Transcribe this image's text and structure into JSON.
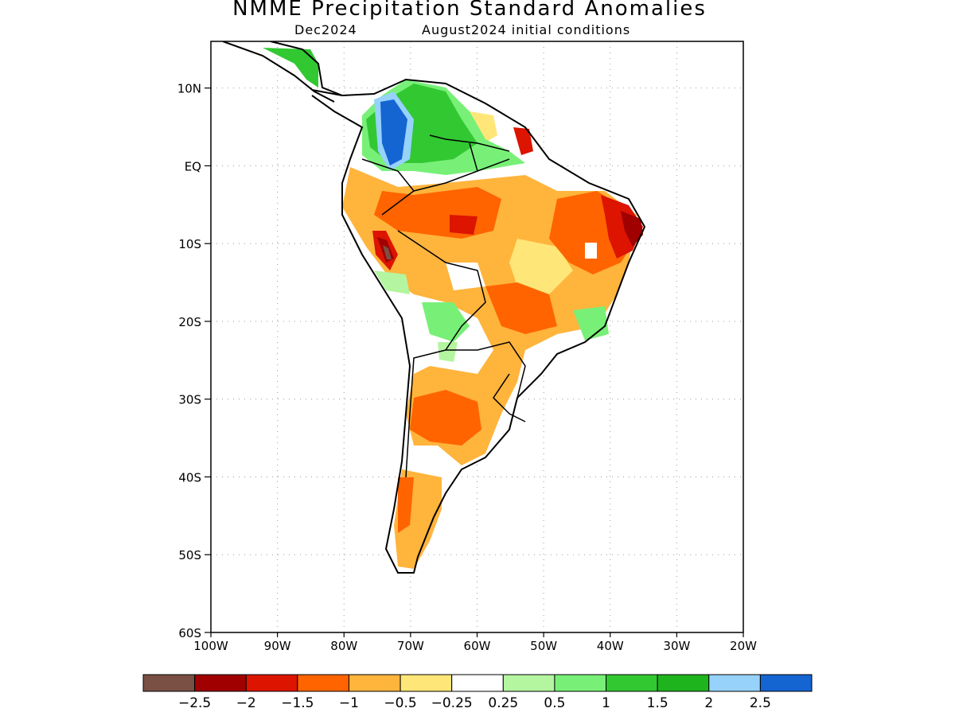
{
  "title": "NMME Precipitation Standard Anomalies",
  "subtitle_left": "Dec2024",
  "subtitle_right": "August2024 initial conditions",
  "lat_ticks": [
    {
      "value": 10,
      "label": "10N"
    },
    {
      "value": 0,
      "label": "EQ"
    },
    {
      "value": -10,
      "label": "10S"
    },
    {
      "value": -20,
      "label": "20S"
    },
    {
      "value": -30,
      "label": "30S"
    },
    {
      "value": -40,
      "label": "40S"
    },
    {
      "value": -50,
      "label": "50S"
    },
    {
      "value": -60,
      "label": "60S"
    }
  ],
  "lon_ticks": [
    {
      "value": -100,
      "label": "100W"
    },
    {
      "value": -90,
      "label": "90W"
    },
    {
      "value": -80,
      "label": "80W"
    },
    {
      "value": -70,
      "label": "70W"
    },
    {
      "value": -60,
      "label": "60W"
    },
    {
      "value": -50,
      "label": "50W"
    },
    {
      "value": -40,
      "label": "40W"
    },
    {
      "value": -30,
      "label": "30W"
    },
    {
      "value": -20,
      "label": "20W"
    }
  ],
  "extent": {
    "lon_min": -100,
    "lon_max": -20,
    "lat_min": -60,
    "lat_max": 16
  },
  "legend": {
    "colors": [
      "#7a5044",
      "#a00000",
      "#dc1400",
      "#ff6400",
      "#ffb43c",
      "#ffe678",
      "#ffffff",
      "#b4f5a0",
      "#78f078",
      "#32c832",
      "#1eb41e",
      "#96d2fa",
      "#1464d2"
    ],
    "labels": [
      "−2.5",
      "−2",
      "−1.5",
      "−1",
      "−0.5",
      "−0.25",
      "0.25",
      "0.5",
      "1",
      "1.5",
      "2",
      "2.5"
    ]
  },
  "regions": [
    {
      "name": "colombia-wet-blue",
      "color": "#1464d2",
      "points": [
        [
          -74,
          9
        ],
        [
          -72,
          10
        ],
        [
          -71,
          6
        ],
        [
          -72.5,
          0
        ],
        [
          -74,
          1
        ],
        [
          -75,
          5
        ]
      ]
    },
    {
      "name": "venezuela-wet",
      "color": "#32c832",
      "points": [
        [
          -76,
          7
        ],
        [
          -74,
          10
        ],
        [
          -71,
          11
        ],
        [
          -66,
          11
        ],
        [
          -64,
          9
        ],
        [
          -61,
          7
        ],
        [
          -58,
          5
        ],
        [
          -58,
          3
        ],
        [
          -63,
          1
        ],
        [
          -67,
          0
        ],
        [
          -70,
          0
        ],
        [
          -73,
          1
        ],
        [
          -76,
          3
        ]
      ]
    },
    {
      "name": "northeast-brazil-dry",
      "color": "#dc1400",
      "points": [
        [
          -40,
          -3
        ],
        [
          -36,
          -5
        ],
        [
          -35,
          -8
        ],
        [
          -37,
          -11
        ],
        [
          -40,
          -10
        ],
        [
          -41,
          -6
        ]
      ]
    },
    {
      "name": "brazil-dry-orange",
      "color": "#ff6400",
      "points": [
        [
          -50,
          -3
        ],
        [
          -42,
          -2
        ],
        [
          -36,
          -5
        ],
        [
          -38,
          -12
        ],
        [
          -44,
          -13
        ],
        [
          -48,
          -11
        ],
        [
          -51,
          -7
        ]
      ]
    },
    {
      "name": "peru-dry",
      "color": "#ff6400",
      "points": [
        [
          -76,
          -8
        ],
        [
          -73,
          -9
        ],
        [
          -72,
          -13
        ],
        [
          -75,
          -13
        ],
        [
          -77,
          -11
        ]
      ]
    },
    {
      "name": "argentina-dry",
      "color": "#ff6400",
      "points": [
        [
          -68,
          -30
        ],
        [
          -62,
          -30
        ],
        [
          -60,
          -35
        ],
        [
          -64,
          -38
        ],
        [
          -68,
          -36
        ]
      ]
    },
    {
      "name": "patagonia-dry",
      "color": "#ff6400",
      "points": [
        [
          -71,
          -42
        ],
        [
          -68,
          -42
        ],
        [
          -68,
          -47
        ],
        [
          -71,
          -47
        ]
      ]
    }
  ]
}
